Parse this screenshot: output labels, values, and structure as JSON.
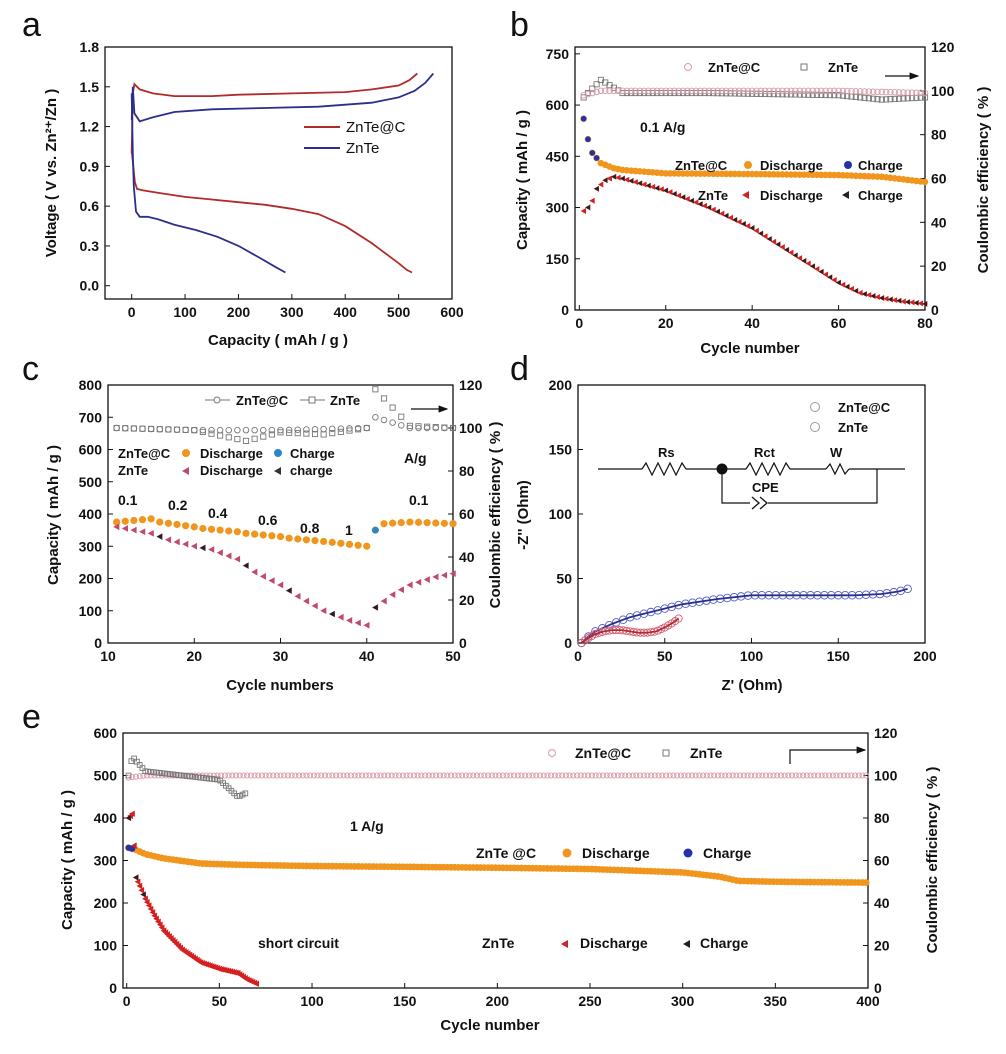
{
  "colors": {
    "znte_c_line": "#b22a2a",
    "znte_line": "#2b2f8c",
    "orange": "#f0961e",
    "blue": "#2233aa",
    "red": "#d42020",
    "pink": "#c04a6a",
    "dark": "#222222",
    "ce_pink": "#d89aa8",
    "ce_gray": "#777777",
    "ce_blue": "#5060c8"
  },
  "chart_data": [
    {
      "panel": "a",
      "type": "line",
      "xlabel": "Capacity ( mAh / g )",
      "ylabel": "Voltage ( V vs. Zn²⁺/Zn )",
      "xlim": [
        -50,
        600
      ],
      "ylim": [
        -0.1,
        1.8
      ],
      "xticks": [
        "0",
        "100",
        "200",
        "300",
        "400",
        "500",
        "600"
      ],
      "yticks": [
        "0.0",
        "0.3",
        "0.6",
        "0.9",
        "1.2",
        "1.5",
        "1.8"
      ],
      "legend": [
        "ZnTe@C",
        "ZnTe"
      ],
      "series": [
        {
          "name": "ZnTe@C discharge",
          "x": [
            0,
            3,
            6,
            10,
            20,
            50,
            100,
            150,
            200,
            250,
            300,
            350,
            400,
            450,
            480,
            500,
            515,
            525
          ],
          "y": [
            1.02,
            0.9,
            0.78,
            0.73,
            0.72,
            0.7,
            0.67,
            0.65,
            0.63,
            0.61,
            0.58,
            0.54,
            0.45,
            0.32,
            0.23,
            0.17,
            0.12,
            0.1
          ]
        },
        {
          "name": "ZnTe@C charge",
          "x": [
            0,
            2,
            5,
            15,
            40,
            80,
            150,
            200,
            300,
            400,
            450,
            500,
            520,
            535
          ],
          "y": [
            1.0,
            1.45,
            1.52,
            1.48,
            1.45,
            1.43,
            1.43,
            1.44,
            1.45,
            1.46,
            1.48,
            1.51,
            1.55,
            1.6
          ]
        },
        {
          "name": "ZnTe discharge",
          "x": [
            0,
            2,
            4,
            8,
            15,
            30,
            50,
            80,
            120,
            160,
            200,
            240,
            270,
            288
          ],
          "y": [
            1.45,
            1.0,
            0.75,
            0.56,
            0.52,
            0.52,
            0.5,
            0.46,
            0.42,
            0.37,
            0.3,
            0.21,
            0.14,
            0.1
          ]
        },
        {
          "name": "ZnTe charge",
          "x": [
            0,
            2,
            5,
            15,
            40,
            80,
            150,
            250,
            350,
            450,
            500,
            530,
            550,
            565
          ],
          "y": [
            1.25,
            1.5,
            1.3,
            1.24,
            1.27,
            1.31,
            1.33,
            1.34,
            1.35,
            1.38,
            1.42,
            1.47,
            1.53,
            1.6
          ]
        }
      ]
    },
    {
      "panel": "b",
      "type": "scatter",
      "xlabel": "Cycle number",
      "ylabel": "Capacity ( mAh / g )",
      "y2label": "Coulombic efficiency ( % )",
      "xlim": [
        -1,
        80
      ],
      "ylim": [
        0,
        770
      ],
      "y2lim": [
        0,
        120
      ],
      "xticks": [
        "0",
        "20",
        "40",
        "60",
        "80"
      ],
      "yticks": [
        "0",
        "150",
        "300",
        "450",
        "600",
        "750"
      ],
      "y2ticks": [
        "0",
        "20",
        "40",
        "60",
        "80",
        "100",
        "120"
      ],
      "rate": "0.1 A/g",
      "legend": [
        "ZnTe@C",
        "ZnTe",
        "ZnTe@C",
        "Discharge",
        "Charge",
        "ZnTe",
        "Discharge",
        "Charge"
      ],
      "series": [
        {
          "name": "ZnTe@C Discharge",
          "x": [
            1,
            2,
            3,
            5,
            8,
            10,
            20,
            40,
            60,
            70,
            80
          ],
          "y": [
            560,
            500,
            460,
            430,
            415,
            410,
            400,
            398,
            395,
            390,
            375
          ]
        },
        {
          "name": "ZnTe Discharge",
          "x": [
            1,
            2,
            3,
            4,
            6,
            8,
            10,
            20,
            30,
            40,
            50,
            60,
            65,
            70,
            75,
            80
          ],
          "y": [
            290,
            300,
            320,
            355,
            380,
            390,
            385,
            350,
            300,
            240,
            160,
            80,
            50,
            35,
            25,
            18
          ]
        },
        {
          "name": "ZnTe@C CE",
          "x": [
            1,
            5,
            20,
            40,
            60,
            80
          ],
          "y": [
            98,
            100,
            100,
            100,
            100,
            99
          ]
        },
        {
          "name": "ZnTe CE",
          "x": [
            1,
            3,
            5,
            10,
            30,
            60,
            70,
            80
          ],
          "y": [
            97,
            101,
            105,
            99,
            99,
            98,
            96,
            97
          ]
        }
      ]
    },
    {
      "panel": "c",
      "type": "scatter",
      "xlabel": "Cycle numbers",
      "ylabel": "Capacity ( mAh / g )",
      "y2label": "Coulombic efficiency ( % )",
      "xlim": [
        10,
        50
      ],
      "ylim": [
        0,
        800
      ],
      "y2lim": [
        0,
        120
      ],
      "xticks": [
        "10",
        "20",
        "30",
        "40",
        "50"
      ],
      "yticks": [
        "0",
        "100",
        "200",
        "300",
        "400",
        "500",
        "600",
        "700",
        "800"
      ],
      "y2ticks": [
        "0",
        "20",
        "40",
        "60",
        "80",
        "100",
        "120"
      ],
      "rate_unit": "A/g",
      "rates": [
        "0.1",
        "0.2",
        "0.4",
        "0.6",
        "0.8",
        "1",
        "0.1"
      ],
      "legend": [
        "ZnTe@C",
        "ZnTe",
        "ZnTe@C",
        "Discharge",
        "Charge",
        "ZnTe",
        "Discharge",
        "charge"
      ],
      "series": [
        {
          "name": "ZnTe@C Discharge",
          "x": [
            11,
            13,
            15,
            16,
            20,
            21,
            25,
            26,
            30,
            31,
            35,
            36,
            40,
            41,
            42,
            45,
            50
          ],
          "y": [
            375,
            380,
            385,
            375,
            360,
            355,
            345,
            340,
            330,
            325,
            315,
            312,
            300,
            350,
            370,
            375,
            370
          ]
        },
        {
          "name": "ZnTe Discharge",
          "x": [
            11,
            13,
            15,
            17,
            20,
            22,
            25,
            27,
            30,
            32,
            35,
            38,
            40,
            41,
            43,
            45,
            48,
            50
          ],
          "y": [
            360,
            350,
            340,
            320,
            300,
            290,
            260,
            220,
            180,
            145,
            100,
            70,
            55,
            110,
            150,
            180,
            205,
            215
          ]
        },
        {
          "name": "ZnTe@C CE",
          "x": [
            11,
            20,
            30,
            40,
            41,
            45,
            50
          ],
          "y": [
            100,
            99,
            99,
            100,
            105,
            100,
            100
          ]
        },
        {
          "name": "ZnTe CE",
          "x": [
            11,
            20,
            26,
            30,
            35,
            40,
            41,
            45,
            50
          ],
          "y": [
            100,
            99,
            94,
            98,
            97,
            100,
            118,
            101,
            100
          ]
        }
      ]
    },
    {
      "panel": "d",
      "type": "scatter",
      "xlabel": "Z' (Ohm)",
      "ylabel": "-Z'' (Ohm)",
      "xlim": [
        0,
        200
      ],
      "ylim": [
        0,
        200
      ],
      "xticks": [
        "0",
        "50",
        "100",
        "150",
        "200"
      ],
      "yticks": [
        "0",
        "50",
        "100",
        "150",
        "200"
      ],
      "legend": [
        "ZnTe@C",
        "ZnTe"
      ],
      "circuit_labels": [
        "Rs",
        "Rct",
        "W",
        "CPE"
      ],
      "series": [
        {
          "name": "ZnTe@C",
          "x": [
            2,
            5,
            10,
            15,
            20,
            25,
            30,
            35,
            40,
            45,
            50,
            55,
            58
          ],
          "y": [
            0,
            3,
            7,
            9,
            10,
            10,
            9,
            8,
            8,
            9,
            12,
            16,
            19
          ]
        },
        {
          "name": "ZnTe",
          "x": [
            2,
            5,
            10,
            20,
            30,
            45,
            60,
            80,
            100,
            120,
            140,
            160,
            175,
            185,
            190
          ],
          "y": [
            0,
            4,
            9,
            15,
            20,
            25,
            30,
            34,
            37,
            37,
            37,
            37,
            38,
            40,
            42
          ]
        }
      ]
    },
    {
      "panel": "e",
      "type": "scatter",
      "xlabel": "Cycle number",
      "ylabel": "Capacity ( mAh / g )",
      "y2label": "Coulombic efficiency ( % )",
      "xlim": [
        -2,
        400
      ],
      "ylim": [
        0,
        600
      ],
      "y2lim": [
        0,
        120
      ],
      "xticks": [
        "0",
        "50",
        "100",
        "150",
        "200",
        "250",
        "300",
        "350",
        "400"
      ],
      "yticks": [
        "0",
        "100",
        "200",
        "300",
        "400",
        "500",
        "600"
      ],
      "y2ticks": [
        "0",
        "20",
        "40",
        "60",
        "80",
        "100",
        "120"
      ],
      "rate": "1 A/g",
      "short_circuit": "short circuit",
      "legend": [
        "ZnTe@C",
        "ZnTe",
        "ZnTe @C",
        "Discharge",
        "Charge",
        "ZnTe",
        "Discharge",
        "Charge"
      ],
      "series": [
        {
          "name": "ZnTe@C Discharge",
          "x": [
            1,
            5,
            10,
            20,
            40,
            60,
            100,
            150,
            200,
            250,
            300,
            320,
            330,
            350,
            400
          ],
          "y": [
            330,
            325,
            315,
            305,
            293,
            290,
            287,
            285,
            283,
            280,
            272,
            262,
            252,
            250,
            248
          ]
        },
        {
          "name": "ZnTe Discharge",
          "x": [
            1,
            3,
            5,
            7,
            10,
            15,
            20,
            30,
            40,
            50,
            55,
            60,
            65,
            70
          ],
          "y": [
            400,
            410,
            260,
            240,
            210,
            170,
            135,
            90,
            60,
            45,
            40,
            35,
            20,
            10
          ]
        },
        {
          "name": "ZnTe@C CE",
          "x": [
            1,
            10,
            100,
            200,
            300,
            400
          ],
          "y": [
            99,
            100,
            100,
            100,
            100,
            100
          ]
        },
        {
          "name": "ZnTe CE",
          "x": [
            1,
            3,
            10,
            30,
            50,
            60,
            65
          ],
          "y": [
            100,
            109,
            102,
            100,
            98,
            90,
            92
          ]
        }
      ]
    }
  ]
}
